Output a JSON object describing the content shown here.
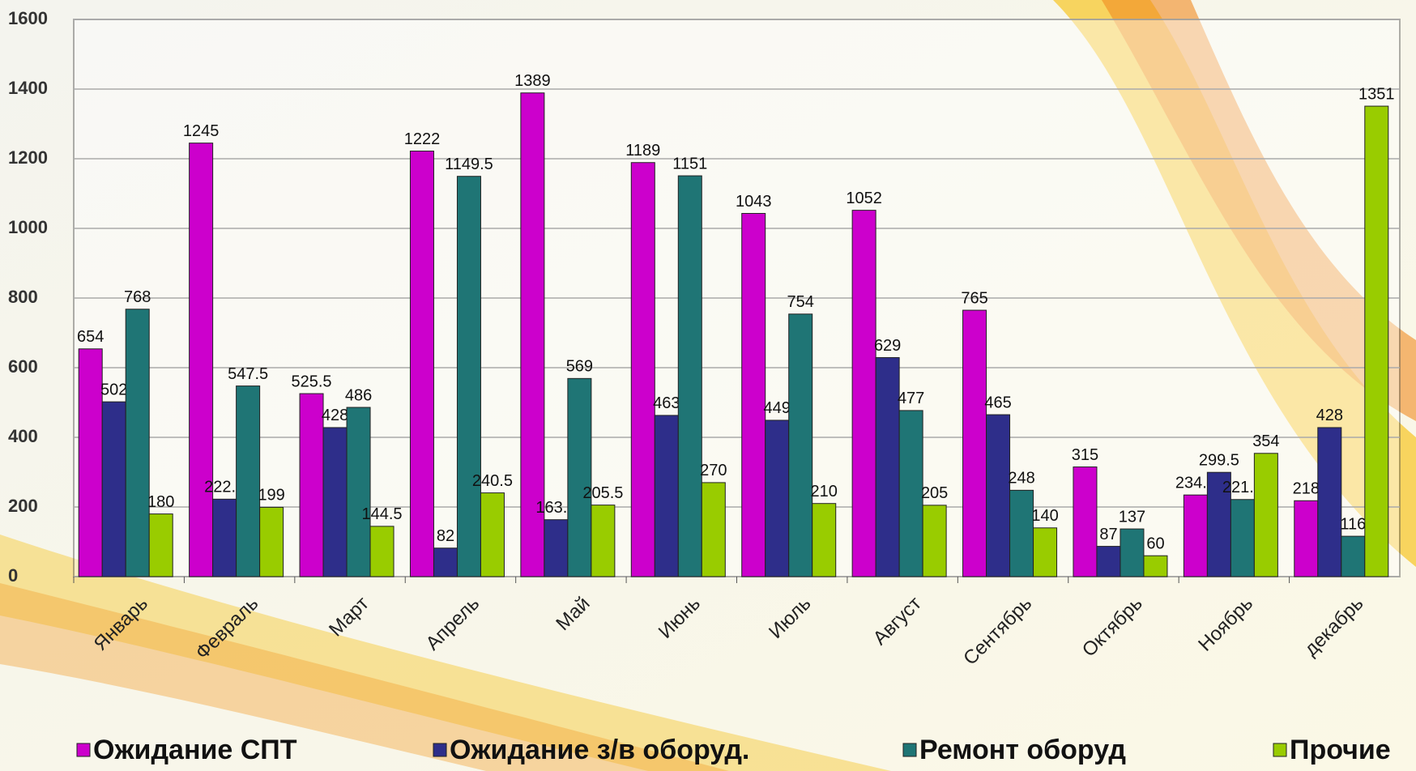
{
  "chart_data": {
    "type": "bar",
    "categories": [
      "Январь",
      "Февраль",
      "Март",
      "Апрель",
      "Май",
      "Июнь",
      "Июль",
      "Август",
      "Сентябрь",
      "Октябрь",
      "Ноябрь",
      "декабрь"
    ],
    "series": [
      {
        "name": "Ожидание СПТ",
        "color": "#cc00cc",
        "values": [
          654,
          1245,
          525.5,
          1222,
          1389,
          1189,
          1043,
          1052,
          765,
          315,
          234.5,
          218
        ]
      },
      {
        "name": "Ожидание з/в оборуд.",
        "color": "#2e2e8a",
        "values": [
          502,
          222.5,
          428,
          82,
          163.5,
          463,
          449,
          629,
          465,
          87,
          299.5,
          428
        ]
      },
      {
        "name": "Ремонт оборуд",
        "color": "#1f7575",
        "values": [
          768,
          547.5,
          486,
          1149.5,
          569,
          1151,
          754,
          477,
          248,
          137,
          221.5,
          116
        ]
      },
      {
        "name": "Прочие",
        "color": "#99cc00",
        "values": [
          180,
          199,
          144.5,
          240.5,
          205.5,
          270,
          210,
          205,
          140,
          60,
          354,
          1351
        ]
      }
    ],
    "ylim": [
      0,
      1600
    ],
    "yticks": [
      0,
      200,
      400,
      600,
      800,
      1000,
      1200,
      1400,
      1600
    ],
    "grid": true,
    "legend": "bottom"
  }
}
